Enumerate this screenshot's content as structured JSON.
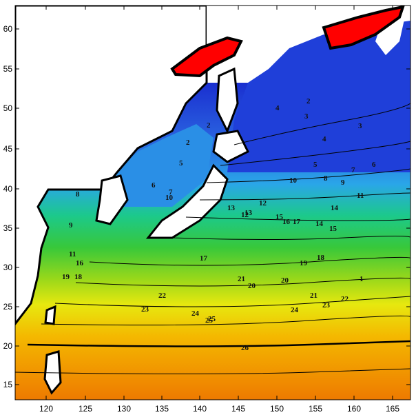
{
  "map": {
    "x_ticks": [
      "120",
      "125",
      "130",
      "135",
      "140",
      "145",
      "150",
      "155",
      "160",
      "165"
    ],
    "y_ticks": [
      "15",
      "20",
      "25",
      "30",
      "35",
      "40",
      "45",
      "50",
      "55",
      "60"
    ],
    "contour_labels": [
      "1",
      "2",
      "2",
      "3",
      "4",
      "5",
      "6",
      "7",
      "8",
      "9",
      "10",
      "11",
      "12",
      "13",
      "14",
      "15",
      "16",
      "17",
      "18",
      "19",
      "20",
      "21",
      "22",
      "23",
      "24",
      "25",
      "26",
      "2",
      "3",
      "4",
      "5",
      "6",
      "7",
      "8",
      "9",
      "10",
      "11",
      "12",
      "13",
      "14",
      "15",
      "16",
      "17",
      "18",
      "19",
      "20",
      "21",
      "22",
      "23",
      "24",
      "25"
    ],
    "colors": {
      "land": "#ffffff",
      "ice": "#ff0000",
      "cold": "#1f3fd9",
      "cool": "#2aa6e8",
      "mild": "#2ec86a",
      "warm": "#c6e60f",
      "hot": "#f0a000",
      "hottest": "#ef7b00"
    }
  }
}
